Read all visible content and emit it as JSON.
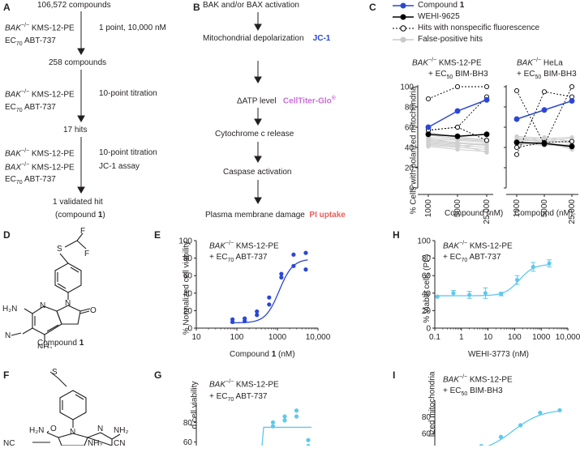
{
  "panels": {
    "A": "A",
    "B": "B",
    "C": "C",
    "D": "D",
    "E": "E",
    "F": "F",
    "G": "G",
    "H": "H",
    "I": "I"
  },
  "panelA": {
    "step1": "106,572 compounds",
    "screen1_sup": "−/−",
    "screen1_cells": "KMS-12-PE",
    "screen1_bak": "BAK",
    "ec70_prefix": "EC",
    "ec70_sub": "70",
    "drug": "ABT-737",
    "screen1_mode": "1 point, 10,000 nM",
    "step2": "258 compounds",
    "screen2_mode": "10-point titration",
    "step3": "17 hits",
    "screen3_line2_cells": "KMS-12-PE",
    "screen3_mode": "10-point titration",
    "screen3_assay": "JC-1 assay",
    "step4_line1": "1 validated hit",
    "step4_line2_prefix": "(compound ",
    "step4_bold": "1",
    "step4_line2_suffix": ")"
  },
  "panelB": {
    "s1": "BAK and/or BAX activation",
    "s2": "Mitochondrial depolarization",
    "s2_assay": "JC-1",
    "s3": "ΔATP level",
    "s3_assay": "CellTiter-Glo",
    "s3_reg": "®",
    "s4": "Cytochrome c release",
    "s5": "Caspase activation",
    "s6": "Plasma membrane damage",
    "s6_assay": "PI uptake"
  },
  "panelC": {
    "legend": [
      "Compound 1",
      "WEHI-9625",
      "Hits with nonspecific fluorescence",
      "False-positive hits"
    ],
    "legend_bold_1": "1",
    "legend_prefix_1": "Compound ",
    "left_title_bak": "BAK",
    "left_title_sup": "−/−",
    "left_title_cells": "KMS-12-PE",
    "right_title_cells": "HeLa",
    "ec50_prefix": "+ EC",
    "ec50_sub": "50",
    "bimbh3": "BIM-BH3",
    "ylabel": "% Cells with polarized mitochondria",
    "xlabel": "Compound (nM)"
  },
  "panelD": {
    "caption_prefix": "Compound ",
    "caption_bold": "1"
  },
  "panelE": {
    "title_bak": "BAK",
    "title_sup": "−/−",
    "title_cells": "KMS-12-PE",
    "title2_prefix": "+ EC",
    "title2_sub": "70",
    "title2_drug": "ABT-737",
    "ylabel": "% Normalized cell viability",
    "xlabel_prefix": "Compound ",
    "xlabel_bold": "1",
    "xlabel_suffix": " (nM)"
  },
  "panelH": {
    "title_bak": "BAK",
    "title_sup": "−/−",
    "title_cells": "KMS-12-PE",
    "title2_prefix": "+ EC",
    "title2_sub": "70",
    "title2_drug": "ABT-737",
    "ylabel": "% Viable cells (PI",
    "ylabel_sup": "−",
    "ylabel_suffix": ")",
    "xlabel": "WEHI-3773 (nM)"
  },
  "panelG": {
    "title_bak": "BAK",
    "title_sup": "−/−",
    "title_cells": "KMS-12-PE",
    "title2_prefix": "+ EC",
    "title2_sub": "70",
    "title2_drug": "ABT-737",
    "ylabel": "d cell viability"
  },
  "panelI": {
    "title_bak": "BAK",
    "title_sup": "−/−",
    "title_cells": "KMS-12-PE",
    "title2_prefix": "+ EC",
    "title2_sub": "50",
    "title2_drug": "BIM-BH3",
    "ylabel": "lized mitochondria"
  },
  "chart_data": [
    {
      "id": "C-left",
      "type": "line",
      "x": [
        "1000",
        "5000",
        "25,000"
      ],
      "ylim": [
        0,
        100
      ],
      "yticks": [
        0,
        20,
        40,
        60,
        80,
        100
      ],
      "series": [
        {
          "name": "Compound 1",
          "values": [
            60,
            76,
            87
          ],
          "style": "blue"
        },
        {
          "name": "WEHI-9625",
          "values": [
            53,
            51,
            53
          ],
          "style": "black"
        },
        {
          "name": "Hits with nonspecific fluorescence",
          "values": [
            88,
            100,
            100
          ],
          "style": "open"
        },
        {
          "name": "Hits with nonspecific fluorescence",
          "values": [
            57,
            60,
            90
          ],
          "style": "open"
        },
        {
          "name": "Hits with nonspecific fluorescence",
          "values": [
            57,
            60,
            47
          ],
          "style": "open"
        },
        {
          "name": "False-positive hits",
          "values": [
            [
              48,
              47,
              45
            ],
            [
              46,
              44,
              42
            ],
            [
              50,
              48,
              46
            ],
            [
              44,
              42,
              40
            ],
            [
              52,
              49,
              47
            ],
            [
              42,
              40,
              38
            ],
            [
              47,
              45,
              43
            ],
            [
              45,
              43,
              35
            ],
            [
              55,
              50,
              48
            ],
            [
              43,
              41,
              44
            ],
            [
              49,
              44,
              42
            ],
            [
              41,
              38,
              36
            ]
          ],
          "style": "gray"
        }
      ]
    },
    {
      "id": "C-right",
      "type": "line",
      "x": [
        "1000",
        "5000",
        "25,000"
      ],
      "ylim": [
        0,
        100
      ],
      "yticks": [
        0,
        20,
        40,
        60,
        80,
        100
      ],
      "series": [
        {
          "name": "Compound 1",
          "values": [
            68,
            77,
            86
          ],
          "style": "blue"
        },
        {
          "name": "WEHI-9625",
          "values": [
            45,
            44,
            41
          ],
          "style": "black"
        },
        {
          "name": "Hits with nonspecific fluorescence",
          "values": [
            96,
            43,
            100
          ],
          "style": "open"
        },
        {
          "name": "Hits with nonspecific fluorescence",
          "values": [
            33,
            95,
            90
          ],
          "style": "open"
        },
        {
          "name": "Hits with nonspecific fluorescence",
          "values": [
            40,
            45,
            46
          ],
          "style": "open"
        },
        {
          "name": "False-positive hits",
          "values": [
            [
              48,
              46,
              45
            ],
            [
              50,
              47,
              49
            ],
            [
              46,
              48,
              44
            ],
            [
              44,
              42,
              43
            ],
            [
              47,
              50,
              46
            ],
            [
              45,
              43,
              40
            ],
            [
              49,
              45,
              47
            ],
            [
              43,
              44,
              42
            ],
            [
              42,
              46,
              38
            ],
            [
              51,
              49,
              50
            ]
          ],
          "style": "gray"
        }
      ]
    },
    {
      "id": "E",
      "type": "scatter",
      "xlog": true,
      "xlim": [
        10,
        10000
      ],
      "ylim": [
        0,
        100
      ],
      "xticks": [
        10,
        100,
        1000,
        10000
      ],
      "xticklabels": [
        "10",
        "100",
        "1000",
        "10,000"
      ],
      "yticks": [
        0,
        20,
        40,
        60,
        80,
        100
      ],
      "x": [
        78,
        78,
        156,
        156,
        312,
        312,
        625,
        625,
        1250,
        1250,
        2500,
        2500,
        5000,
        5000
      ],
      "y": [
        10,
        7,
        8,
        11,
        15,
        19,
        27,
        35,
        58,
        62,
        71,
        84,
        67,
        86
      ],
      "fit": {
        "bottom": 6,
        "top": 79,
        "ec50": 1100,
        "hill": 2.6
      },
      "color": "#2b47d4"
    },
    {
      "id": "H",
      "type": "scatter",
      "xlog": true,
      "xlim": [
        0.1,
        10000
      ],
      "ylim": [
        0,
        100
      ],
      "xticks": [
        0.1,
        1,
        10,
        100,
        1000,
        10000
      ],
      "xticklabels": [
        "0.1",
        "1",
        "10",
        "100",
        "1000",
        "10,000"
      ],
      "yticks": [
        0,
        20,
        40,
        60,
        80,
        100
      ],
      "x": [
        0.125,
        0.5,
        2,
        8,
        31,
        125,
        500,
        2000
      ],
      "y": [
        36,
        40,
        38,
        40,
        39,
        55,
        70,
        74
      ],
      "err": [
        0,
        3,
        4,
        6,
        2,
        5,
        5,
        4
      ],
      "fit": {
        "bottom": 37,
        "top": 73,
        "ec50": 150,
        "hill": 1.6
      },
      "color": "#5fc8ec"
    },
    {
      "id": "G",
      "type": "scatter",
      "x": [
        1,
        1,
        2,
        2,
        3,
        3,
        4,
        4,
        5,
        5
      ],
      "y": [
        47,
        50,
        76,
        80,
        82,
        86,
        92,
        86,
        62,
        56
      ],
      "ylim": [
        40,
        100
      ],
      "yticks": [
        60,
        80
      ],
      "color": "#5fc8ec"
    },
    {
      "id": "I",
      "type": "scatter",
      "x": [
        1,
        2,
        3,
        4,
        5,
        6,
        7
      ],
      "y": [
        37,
        39,
        45,
        56,
        70,
        85,
        88
      ],
      "ylim": [
        30,
        100
      ],
      "yticks": [
        40,
        60,
        80
      ],
      "color": "#5fc8ec"
    }
  ]
}
